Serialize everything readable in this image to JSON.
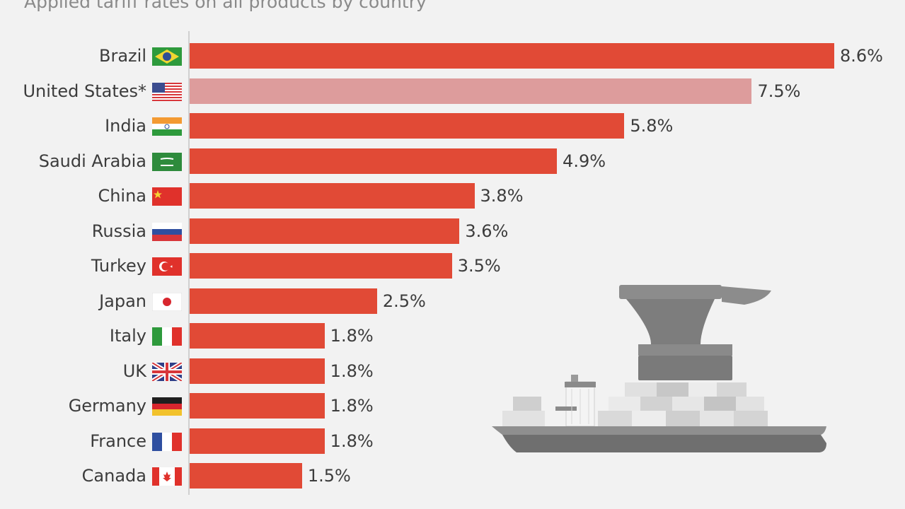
{
  "colors": {
    "bar": "#e14a36",
    "bar_highlight": "#dd9c9c",
    "background": "#f2f2f2"
  },
  "chart_data": {
    "type": "bar",
    "orientation": "horizontal",
    "subtitle": "Applied tariff rates on all products by country",
    "categories": [
      "Brazil",
      "United States*",
      "India",
      "Saudi Arabia",
      "China",
      "Russia",
      "Turkey",
      "Japan",
      "Italy",
      "UK",
      "Germany",
      "France",
      "Canada"
    ],
    "values": [
      8.6,
      7.5,
      5.8,
      4.9,
      3.8,
      3.6,
      3.5,
      2.5,
      1.8,
      1.8,
      1.8,
      1.8,
      1.5
    ],
    "value_labels": [
      "8.6%",
      "7.5%",
      "5.8%",
      "4.9%",
      "3.8%",
      "3.6%",
      "3.5%",
      "2.5%",
      "1.8%",
      "1.8%",
      "1.8%",
      "1.8%",
      "1.5%"
    ],
    "highlight": [
      "United States*"
    ],
    "flags": [
      "brazil",
      "usa",
      "india",
      "saudi-arabia",
      "china",
      "russia",
      "turkey",
      "japan",
      "italy",
      "uk",
      "germany",
      "france",
      "canada"
    ],
    "xlim": [
      0,
      8.6
    ],
    "grid": false,
    "legend": "none"
  },
  "illustration": {
    "icon": "anvil-on-cargo-ship"
  }
}
